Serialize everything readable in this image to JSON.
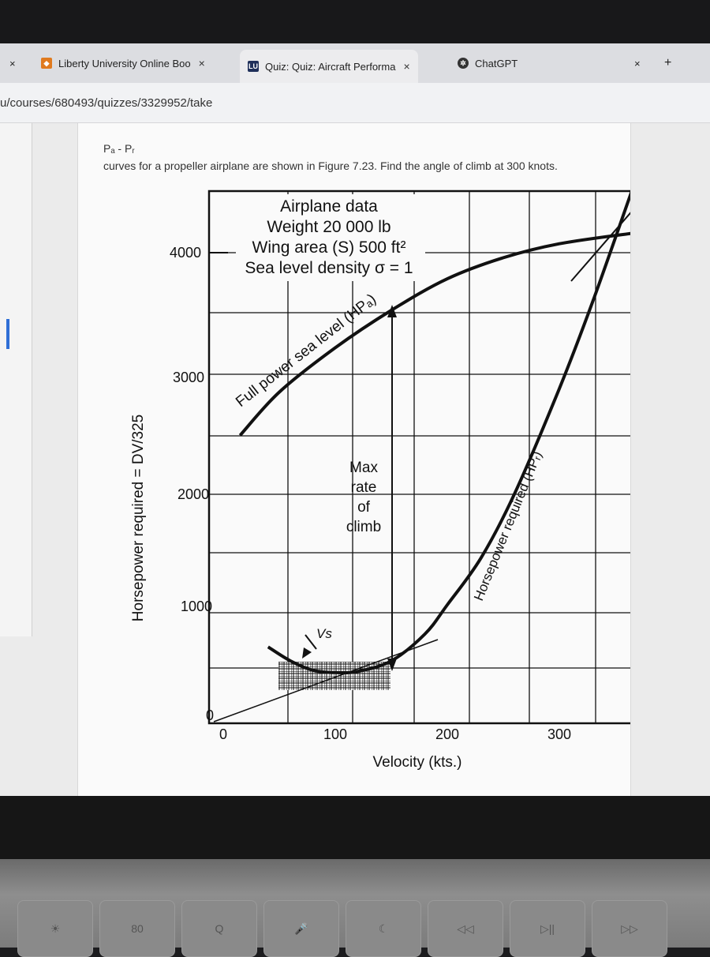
{
  "browser": {
    "tabs": [
      {
        "label": "Liberty University Online Boo",
        "icon": "shield-icon"
      },
      {
        "label": "Quiz: Quiz: Aircraft Performa",
        "icon": "lu-icon"
      },
      {
        "label": "ChatGPT",
        "icon": "chatgpt-icon"
      }
    ],
    "url": "u/courses/680493/quizzes/3329952/take",
    "close_glyph": "×",
    "new_tab_glyph": "+"
  },
  "question": {
    "formula": "Pₐ - Pᵣ",
    "text": "curves for a propeller airplane are shown in Figure 7.23. Find the angle of climb at 300 knots."
  },
  "figure": {
    "airplane_data": [
      "Airplane data",
      "Weight 20 000 lb",
      "Wing area (S) 500 ft²",
      "Sea level density σ = 1"
    ],
    "ylabel": "Horsepower required = DV/325",
    "xlabel": "Velocity (kts.)",
    "y_ticks": [
      "4000",
      "3000",
      "2000",
      "1000",
      "0"
    ],
    "x_ticks": [
      "0",
      "100",
      "200",
      "300"
    ],
    "available_curve_label": "Full power sea level (HPₐ)",
    "required_curve_label": "Horsepower required (HPᵣ)",
    "max_rate_label": [
      "Max",
      "rate",
      "of",
      "climb"
    ],
    "stall_label": "Vs",
    "chart_data": {
      "type": "line",
      "xlabel": "Velocity (kts.)",
      "ylabel": "Horsepower required = DV/325",
      "series": [
        {
          "name": "Full power sea level (HPₐ)",
          "x": [
            15,
            50,
            100,
            150,
            200,
            250,
            300,
            365
          ],
          "y": [
            2450,
            2820,
            3200,
            3520,
            3790,
            3970,
            4090,
            4180
          ]
        },
        {
          "name": "Horsepower required (HPᵣ)",
          "x": [
            40,
            60,
            80,
            100,
            120,
            150,
            180,
            200,
            230,
            260,
            300,
            330,
            365
          ],
          "y": [
            640,
            520,
            440,
            420,
            430,
            520,
            750,
            1000,
            1400,
            1950,
            2850,
            3600,
            4550
          ]
        }
      ],
      "xlim": [
        0,
        370
      ],
      "ylim": [
        0,
        4300
      ]
    }
  },
  "keyboard": {
    "keys": [
      "☀",
      "80",
      "Q",
      "🎤",
      "☾",
      "◁◁",
      "▷||",
      "▷▷"
    ]
  }
}
